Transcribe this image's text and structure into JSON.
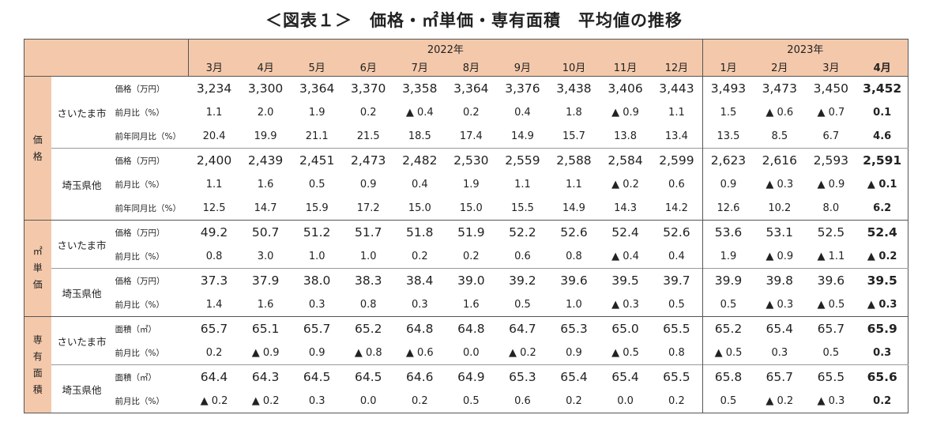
{
  "title": "＜図表１＞　価格・㎡単価・専有面積　平均値の推移",
  "years": [
    "2022年",
    "2023年"
  ],
  "months": [
    "3月",
    "4月",
    "5月",
    "6月",
    "7月",
    "8月",
    "9月",
    "10月",
    "11月",
    "12月",
    "1月",
    "2月",
    "3月",
    "4月"
  ],
  "categories": [
    {
      "label": "価格",
      "regions": [
        {
          "label": "さいたま市",
          "rows": [
            {
              "metric": "価格（万円）",
              "values": [
                "3,234",
                "3,300",
                "3,364",
                "3,370",
                "3,358",
                "3,364",
                "3,376",
                "3,438",
                "3,406",
                "3,443",
                "3,493",
                "3,473",
                "3,450",
                "3,452"
              ]
            },
            {
              "metric": "前月比（%）",
              "values": [
                "1.1",
                "2.0",
                "1.9",
                "0.2",
                "▲ 0.4",
                "0.2",
                "0.4",
                "1.8",
                "▲ 0.9",
                "1.1",
                "1.5",
                "▲ 0.6",
                "▲ 0.7",
                "0.1"
              ]
            },
            {
              "metric": "前年同月比（%）",
              "values": [
                "20.4",
                "19.9",
                "21.1",
                "21.5",
                "18.5",
                "17.4",
                "14.9",
                "15.7",
                "13.8",
                "13.4",
                "13.5",
                "8.5",
                "6.7",
                "4.6"
              ]
            }
          ]
        },
        {
          "label": "埼玉県他",
          "rows": [
            {
              "metric": "価格（万円）",
              "values": [
                "2,400",
                "2,439",
                "2,451",
                "2,473",
                "2,482",
                "2,530",
                "2,559",
                "2,588",
                "2,584",
                "2,599",
                "2,623",
                "2,616",
                "2,593",
                "2,591"
              ]
            },
            {
              "metric": "前月比（%）",
              "values": [
                "1.1",
                "1.6",
                "0.5",
                "0.9",
                "0.4",
                "1.9",
                "1.1",
                "1.1",
                "▲ 0.2",
                "0.6",
                "0.9",
                "▲ 0.3",
                "▲ 0.9",
                "▲ 0.1"
              ]
            },
            {
              "metric": "前年同月比（%）",
              "values": [
                "12.5",
                "14.7",
                "15.9",
                "17.2",
                "15.0",
                "15.0",
                "15.5",
                "14.9",
                "14.3",
                "14.2",
                "12.6",
                "10.2",
                "8.0",
                "6.2"
              ]
            }
          ]
        }
      ]
    },
    {
      "label": "㎡単価",
      "regions": [
        {
          "label": "さいたま市",
          "rows": [
            {
              "metric": "価格（万円）",
              "values": [
                "49.2",
                "50.7",
                "51.2",
                "51.7",
                "51.8",
                "51.9",
                "52.2",
                "52.6",
                "52.4",
                "52.6",
                "53.6",
                "53.1",
                "52.5",
                "52.4"
              ]
            },
            {
              "metric": "前月比（%）",
              "values": [
                "0.8",
                "3.0",
                "1.0",
                "1.0",
                "0.2",
                "0.2",
                "0.6",
                "0.8",
                "▲ 0.4",
                "0.4",
                "1.9",
                "▲ 0.9",
                "▲ 1.1",
                "▲ 0.2"
              ]
            }
          ]
        },
        {
          "label": "埼玉県他",
          "rows": [
            {
              "metric": "価格（万円）",
              "values": [
                "37.3",
                "37.9",
                "38.0",
                "38.3",
                "38.4",
                "39.0",
                "39.2",
                "39.6",
                "39.5",
                "39.7",
                "39.9",
                "39.8",
                "39.6",
                "39.5"
              ]
            },
            {
              "metric": "前月比（%）",
              "values": [
                "1.4",
                "1.6",
                "0.3",
                "0.8",
                "0.3",
                "1.6",
                "0.5",
                "1.0",
                "▲ 0.3",
                "0.5",
                "0.5",
                "▲ 0.3",
                "▲ 0.5",
                "▲ 0.3"
              ]
            }
          ]
        }
      ]
    },
    {
      "label": "専有面積",
      "regions": [
        {
          "label": "さいたま市",
          "rows": [
            {
              "metric": "面積（㎡）",
              "values": [
                "65.7",
                "65.1",
                "65.7",
                "65.2",
                "64.8",
                "64.8",
                "64.7",
                "65.3",
                "65.0",
                "65.5",
                "65.2",
                "65.4",
                "65.7",
                "65.9"
              ]
            },
            {
              "metric": "前月比（%）",
              "values": [
                "0.2",
                "▲ 0.9",
                "0.9",
                "▲ 0.8",
                "▲ 0.6",
                "0.0",
                "▲ 0.2",
                "0.9",
                "▲ 0.5",
                "0.8",
                "▲ 0.5",
                "0.3",
                "0.5",
                "0.3"
              ]
            }
          ]
        },
        {
          "label": "埼玉県他",
          "rows": [
            {
              "metric": "面積（㎡）",
              "values": [
                "64.4",
                "64.3",
                "64.5",
                "64.5",
                "64.6",
                "64.9",
                "65.3",
                "65.4",
                "65.4",
                "65.5",
                "65.8",
                "65.7",
                "65.5",
                "65.6"
              ]
            },
            {
              "metric": "前月比（%）",
              "values": [
                "▲ 0.2",
                "▲ 0.2",
                "0.3",
                "0.0",
                "0.2",
                "0.5",
                "0.6",
                "0.2",
                "0.0",
                "0.2",
                "0.5",
                "▲ 0.2",
                "▲ 0.3",
                "0.2"
              ]
            }
          ]
        }
      ]
    }
  ]
}
